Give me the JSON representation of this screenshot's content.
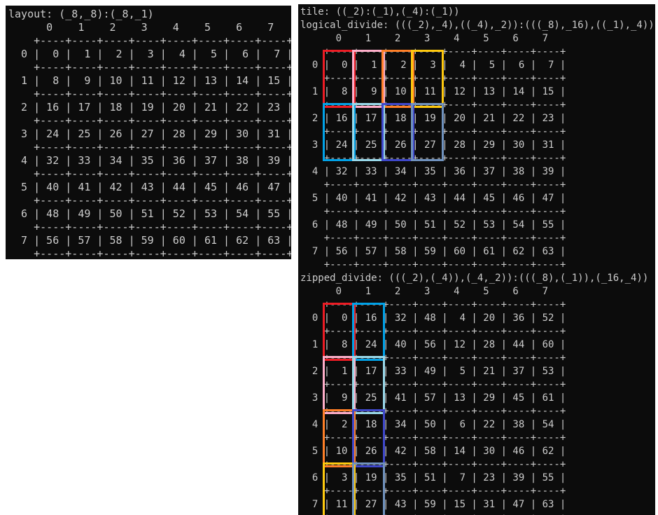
{
  "terminal": {
    "background": "#0c0c0c",
    "foreground": "#cccccc"
  },
  "palette": {
    "red": "#ed1c24",
    "pink": "#ffaec9",
    "orange": "#ff7f27",
    "gold": "#ffc90e",
    "turquoise": "#00a2e8",
    "light_turquoise": "#99d9ea",
    "indigo": "#3f48cc",
    "blue_gray": "#7092be"
  },
  "left_panel": {
    "title": "layout: (_8,_8):(_8,_1)",
    "grid": {
      "col_labels": [
        "0",
        "1",
        "2",
        "3",
        "4",
        "5",
        "6",
        "7"
      ],
      "row_labels": [
        "0",
        "1",
        "2",
        "3",
        "4",
        "5",
        "6",
        "7"
      ],
      "cells": [
        [
          0,
          1,
          2,
          3,
          4,
          5,
          6,
          7
        ],
        [
          8,
          9,
          10,
          11,
          12,
          13,
          14,
          15
        ],
        [
          16,
          17,
          18,
          19,
          20,
          21,
          22,
          23
        ],
        [
          24,
          25,
          26,
          27,
          28,
          29,
          30,
          31
        ],
        [
          32,
          33,
          34,
          35,
          36,
          37,
          38,
          39
        ],
        [
          40,
          41,
          42,
          43,
          44,
          45,
          46,
          47
        ],
        [
          48,
          49,
          50,
          51,
          52,
          53,
          54,
          55
        ],
        [
          56,
          57,
          58,
          59,
          60,
          61,
          62,
          63
        ]
      ],
      "boxes": []
    }
  },
  "right_panel": {
    "tile_title": "tile: ((_2):(_1),(_4):(_1))",
    "logical_divide": {
      "title": "logical_divide: (((_2),_4),((_4),_2)):(((_8),_16),((_1),_4))",
      "col_labels": [
        "0",
        "1",
        "2",
        "3",
        "4",
        "5",
        "6",
        "7"
      ],
      "row_labels": [
        "0",
        "1",
        "2",
        "3",
        "4",
        "5",
        "6",
        "7"
      ],
      "cells": [
        [
          0,
          1,
          2,
          3,
          4,
          5,
          6,
          7
        ],
        [
          8,
          9,
          10,
          11,
          12,
          13,
          14,
          15
        ],
        [
          16,
          17,
          18,
          19,
          20,
          21,
          22,
          23
        ],
        [
          24,
          25,
          26,
          27,
          28,
          29,
          30,
          31
        ],
        [
          32,
          33,
          34,
          35,
          36,
          37,
          38,
          39
        ],
        [
          40,
          41,
          42,
          43,
          44,
          45,
          46,
          47
        ],
        [
          48,
          49,
          50,
          51,
          52,
          53,
          54,
          55
        ],
        [
          56,
          57,
          58,
          59,
          60,
          61,
          62,
          63
        ]
      ],
      "boxes": [
        {
          "col": 0,
          "row": 0,
          "span": 2,
          "color": "red"
        },
        {
          "col": 1,
          "row": 0,
          "span": 2,
          "color": "pink"
        },
        {
          "col": 2,
          "row": 0,
          "span": 2,
          "color": "orange"
        },
        {
          "col": 3,
          "row": 0,
          "span": 2,
          "color": "gold"
        },
        {
          "col": 0,
          "row": 2,
          "span": 2,
          "color": "turquoise"
        },
        {
          "col": 1,
          "row": 2,
          "span": 2,
          "color": "light_turquoise"
        },
        {
          "col": 2,
          "row": 2,
          "span": 2,
          "color": "indigo"
        },
        {
          "col": 3,
          "row": 2,
          "span": 2,
          "color": "blue_gray"
        }
      ]
    },
    "zipped_divide": {
      "title": "zipped_divide: (((_2),(_4)),(_4,_2)):(((_8),(_1)),(_16,_4))",
      "col_labels": [
        "0",
        "1",
        "2",
        "3",
        "4",
        "5",
        "6",
        "7"
      ],
      "row_labels": [
        "0",
        "1",
        "2",
        "3",
        "4",
        "5",
        "6",
        "7"
      ],
      "cells": [
        [
          0,
          16,
          32,
          48,
          4,
          20,
          36,
          52
        ],
        [
          8,
          24,
          40,
          56,
          12,
          28,
          44,
          60
        ],
        [
          1,
          17,
          33,
          49,
          5,
          21,
          37,
          53
        ],
        [
          9,
          25,
          41,
          57,
          13,
          29,
          45,
          61
        ],
        [
          2,
          18,
          34,
          50,
          6,
          22,
          38,
          54
        ],
        [
          10,
          26,
          42,
          58,
          14,
          30,
          46,
          62
        ],
        [
          3,
          19,
          35,
          51,
          7,
          23,
          39,
          55
        ],
        [
          11,
          27,
          43,
          59,
          15,
          31,
          47,
          63
        ]
      ],
      "boxes": [
        {
          "col": 0,
          "row": 0,
          "span": 2,
          "color": "red"
        },
        {
          "col": 1,
          "row": 0,
          "span": 2,
          "color": "turquoise"
        },
        {
          "col": 0,
          "row": 2,
          "span": 2,
          "color": "pink"
        },
        {
          "col": 1,
          "row": 2,
          "span": 2,
          "color": "light_turquoise"
        },
        {
          "col": 0,
          "row": 4,
          "span": 2,
          "color": "orange"
        },
        {
          "col": 1,
          "row": 4,
          "span": 2,
          "color": "indigo"
        },
        {
          "col": 0,
          "row": 6,
          "span": 2,
          "color": "gold"
        },
        {
          "col": 1,
          "row": 6,
          "span": 2,
          "color": "blue_gray"
        }
      ]
    }
  }
}
